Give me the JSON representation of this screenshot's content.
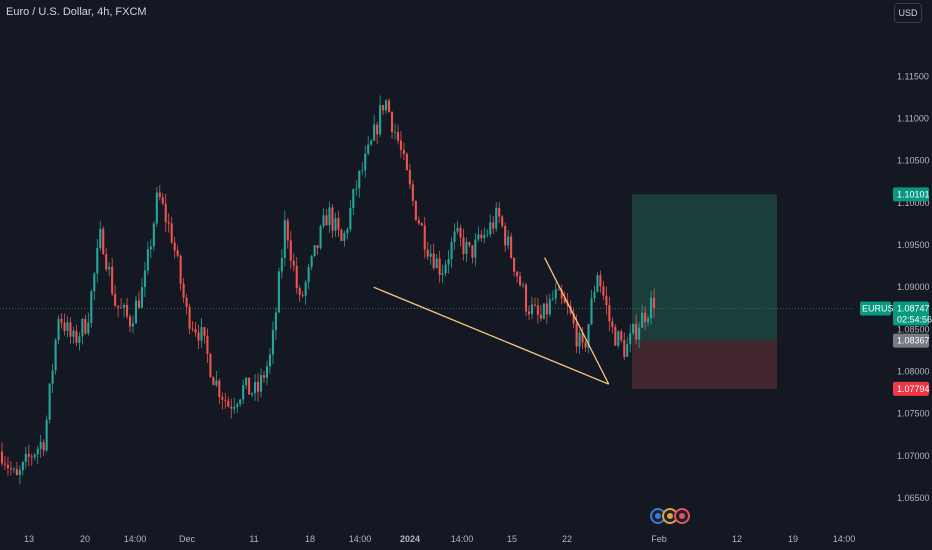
{
  "header": {
    "title": "Euro / U.S. Dollar, 4h, FXCM",
    "currency": "USD"
  },
  "colors": {
    "background": "#141823",
    "up": "#26a69a",
    "down": "#ef5350",
    "trendline": "#f5c57a",
    "target_zone": "#1d4b44",
    "stop_zone": "#4a2a31",
    "price_line": "#2a6b63"
  },
  "chart_data": {
    "type": "candlestick",
    "symbol": "EURUSD",
    "ylim": [
      1.0618,
      1.1205
    ],
    "y_ticks": [
      "1.11500",
      "1.11000",
      "1.10500",
      "1.10000",
      "1.09500",
      "1.09000",
      "1.08500",
      "1.08000",
      "1.07500",
      "1.07000",
      "1.06500"
    ],
    "x_ticks": [
      {
        "label": "13",
        "bold": false
      },
      {
        "label": "20",
        "bold": false
      },
      {
        "label": "14:00",
        "bold": false
      },
      {
        "label": "Dec",
        "bold": false
      },
      {
        "label": "11",
        "bold": false
      },
      {
        "label": "18",
        "bold": false
      },
      {
        "label": "14:00",
        "bold": false
      },
      {
        "label": "2024",
        "bold": true
      },
      {
        "label": "14:00",
        "bold": false
      },
      {
        "label": "15",
        "bold": false
      },
      {
        "label": "22",
        "bold": false
      },
      {
        "label": "Feb",
        "bold": false
      },
      {
        "label": "12",
        "bold": false
      },
      {
        "label": "19",
        "bold": false
      },
      {
        "label": "14:00",
        "bold": false
      }
    ],
    "price_path": [
      1.0705,
      1.067,
      1.07,
      1.072,
      1.087,
      1.0835,
      1.086,
      1.0965,
      1.088,
      1.086,
      1.09,
      1.101,
      1.096,
      1.087,
      1.0845,
      1.079,
      1.076,
      1.078,
      1.0775,
      1.082,
      1.098,
      1.088,
      1.0935,
      1.099,
      1.095,
      1.102,
      1.1065,
      1.1125,
      1.107,
      1.1,
      1.095,
      1.092,
      1.096,
      1.094,
      1.096,
      1.0985,
      1.0935,
      1.088,
      1.086,
      1.089,
      1.087,
      1.082,
      1.092,
      1.085,
      1.0825,
      1.086,
      1.0885
    ],
    "trendlines": [
      {
        "from": {
          "bar": 0.437,
          "price": 1.09
        },
        "to": {
          "bar": 0.712,
          "price": 1.0785
        }
      },
      {
        "from": {
          "bar": 0.637,
          "price": 1.0935
        },
        "to": {
          "bar": 0.712,
          "price": 1.0785
        }
      }
    ],
    "position": {
      "type": "long",
      "entry": 1.08367,
      "target": 1.10101,
      "stop": 1.07794
    },
    "last_price": {
      "label": "EURUSD",
      "value": "1.08747",
      "countdown": "02:54:56"
    },
    "tags": {
      "target": "1.10101",
      "entry": "1.08367",
      "stop": "1.07794"
    }
  }
}
